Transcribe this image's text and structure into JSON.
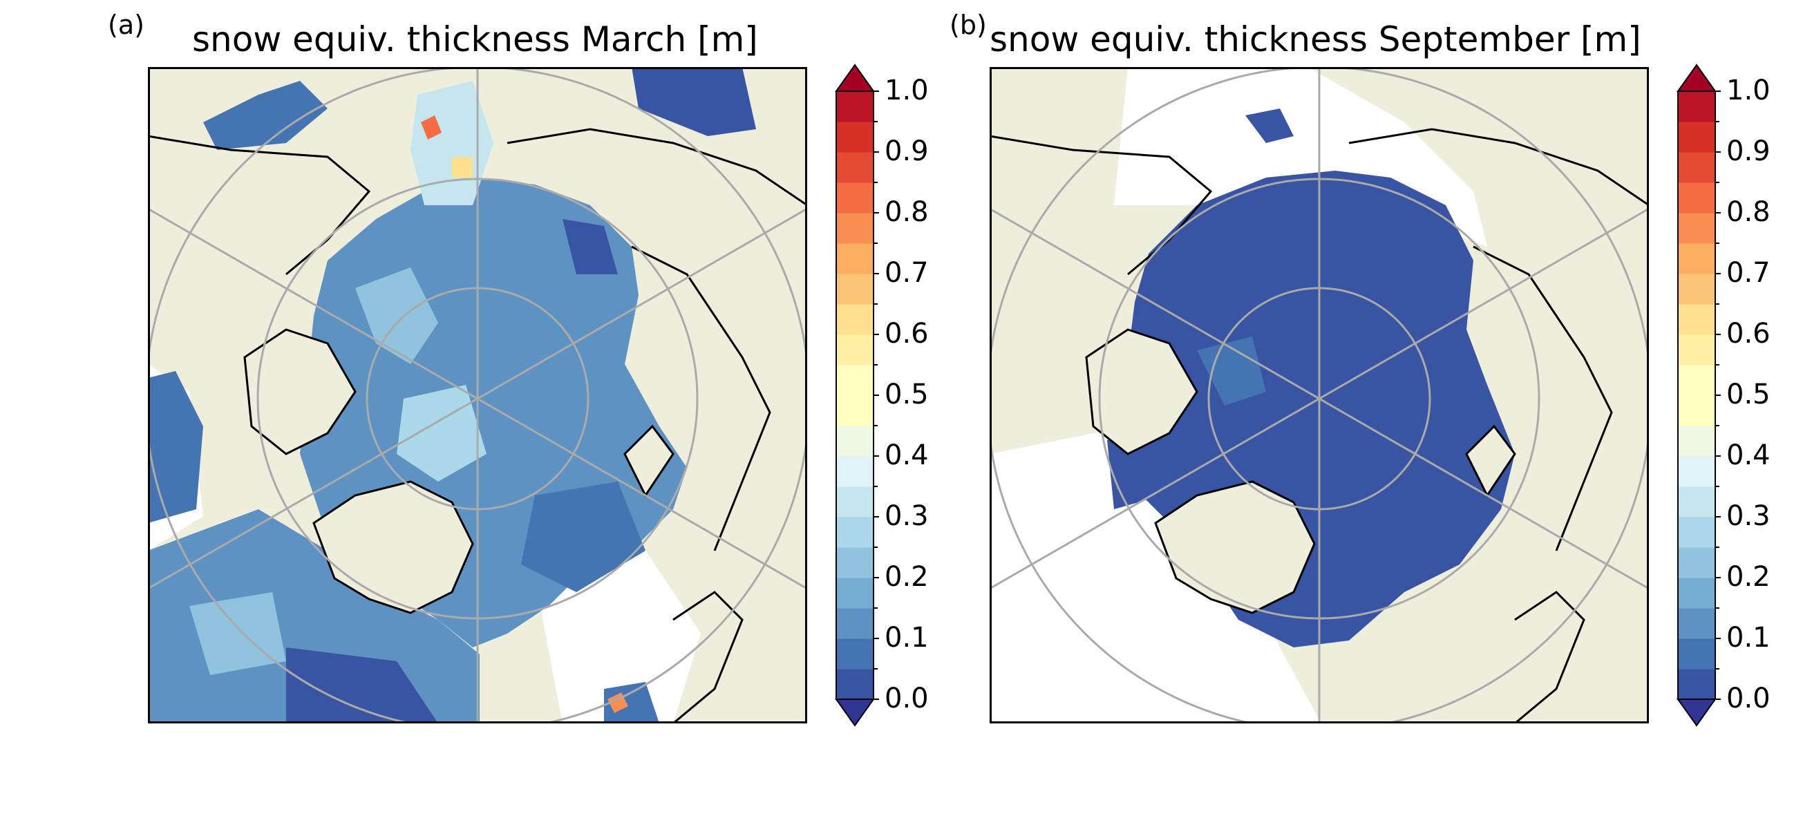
{
  "figure": {
    "panels": [
      {
        "label": "(a)",
        "title": "snow equiv. thickness March [m]"
      },
      {
        "label": "(b)",
        "title": "snow equiv. thickness September [m]"
      }
    ]
  },
  "colorbar": {
    "ticks": [
      "0.0",
      "0.1",
      "0.2",
      "0.3",
      "0.4",
      "0.5",
      "0.6",
      "0.7",
      "0.8",
      "0.9",
      "1.0"
    ],
    "min": 0.0,
    "max": 1.0,
    "levels": 20,
    "extend": "both",
    "colormap": "RdYlBu_r",
    "colors": [
      "#313695",
      "#3a54a4",
      "#4574b3",
      "#5e92c3",
      "#74add1",
      "#90c3dd",
      "#abd9e9",
      "#c6e6ef",
      "#e0f3f8",
      "#eef8e4",
      "#ffffbf",
      "#fff0a6",
      "#fee090",
      "#fdc477",
      "#fdae61",
      "#f88e51",
      "#f46d43",
      "#e34c33",
      "#d73027",
      "#bb1527",
      "#a50026"
    ]
  },
  "map_colors": {
    "land": "#efeedd",
    "open_water": "#ffffff",
    "coastline": "#000000",
    "graticule": "#aaaaaa"
  },
  "legend_none": ""
}
